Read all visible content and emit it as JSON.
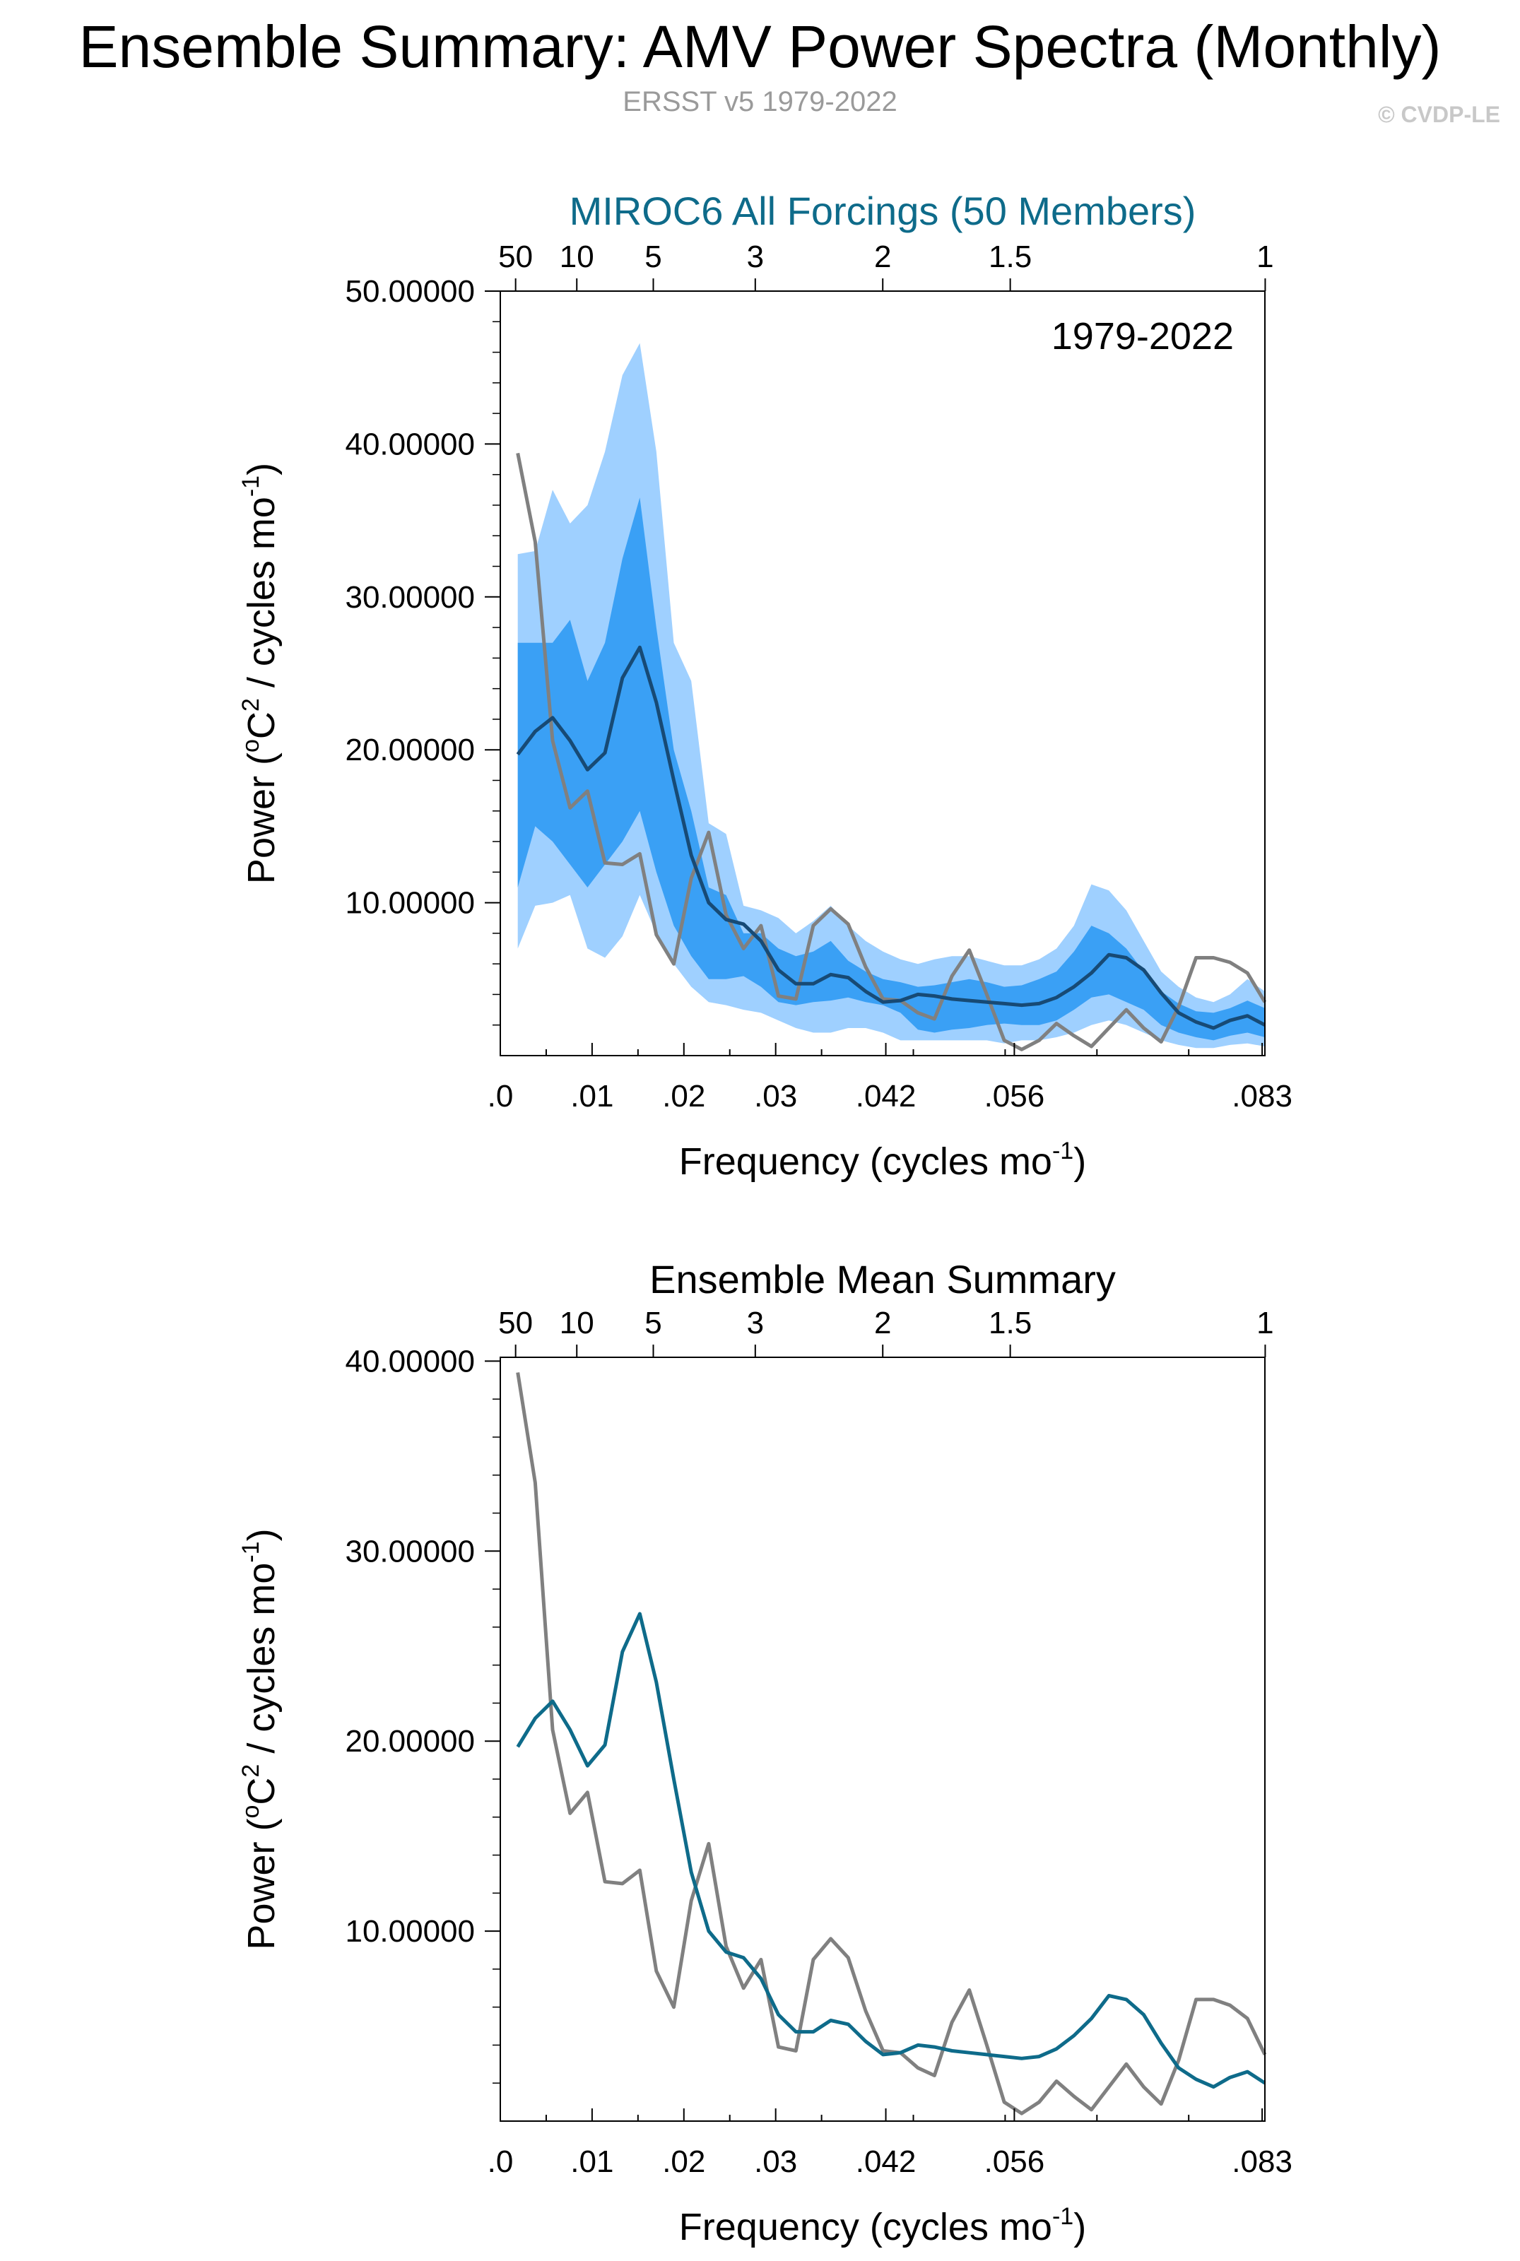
{
  "header": {
    "title": "Ensemble Summary: AMV Power Spectra (Monthly)",
    "subtitle": "ERSST v5 1979-2022",
    "credit": "© CVDP-LE"
  },
  "colors": {
    "band_outer": "#9fd0ff",
    "band_inner": "#3aa0f5",
    "ensemble_mean_top": "#174a75",
    "ensemble_mean_bottom": "#0e6b8a",
    "observations": "#808080",
    "panel1_title": "#0e6b8a"
  },
  "chart_data": [
    {
      "type": "area",
      "title": "MIROC6 All Forcings (50 Members)",
      "annotation": "1979-2022",
      "xlabel_main": "Frequency (cycles mo",
      "xlabel_sup": "-1",
      "xlabel_end": ")",
      "ylabel_main": "Power (",
      "ylabel_sup1": "o",
      "ylabel_mid": "C",
      "ylabel_sup2": "2",
      "ylabel_mid2": " / cycles mo",
      "ylabel_sup3": "-1",
      "ylabel_end": ")",
      "xlim": [
        0,
        0.0833
      ],
      "ylim": [
        0,
        50
      ],
      "xticks": [
        {
          "value": 0,
          "label": ".0"
        },
        {
          "value": 0.01,
          "label": ".01"
        },
        {
          "value": 0.02,
          "label": ".02"
        },
        {
          "value": 0.03,
          "label": ".03"
        },
        {
          "value": 0.042,
          "label": ".042"
        },
        {
          "value": 0.056,
          "label": ".056"
        },
        {
          "value": 0.083,
          "label": ".083"
        }
      ],
      "yticks": [
        {
          "value": 10,
          "label": "10.00000"
        },
        {
          "value": 20,
          "label": "20.00000"
        },
        {
          "value": 30,
          "label": "30.00000"
        },
        {
          "value": 40,
          "label": "40.00000"
        },
        {
          "value": 50,
          "label": "50.00000"
        }
      ],
      "top_axis_period_ticks": [
        {
          "value": 0.001667,
          "label": "50"
        },
        {
          "value": 0.008333,
          "label": "10"
        },
        {
          "value": 0.016667,
          "label": "5"
        },
        {
          "value": 0.027778,
          "label": "3"
        },
        {
          "value": 0.041667,
          "label": "2"
        },
        {
          "value": 0.055556,
          "label": "1.5"
        },
        {
          "value": 0.083333,
          "label": "1"
        }
      ],
      "x": [
        0.0019,
        0.0038,
        0.0057,
        0.0076,
        0.0095,
        0.0114,
        0.0133,
        0.0152,
        0.017,
        0.0189,
        0.0208,
        0.0227,
        0.0246,
        0.0265,
        0.0284,
        0.0303,
        0.0322,
        0.0341,
        0.036,
        0.0379,
        0.0398,
        0.0417,
        0.0436,
        0.0455,
        0.0473,
        0.0492,
        0.0511,
        0.053,
        0.0549,
        0.0568,
        0.0587,
        0.0606,
        0.0625,
        0.0644,
        0.0663,
        0.0682,
        0.0701,
        0.072,
        0.0739,
        0.0758,
        0.0777,
        0.0795,
        0.0814,
        0.0833
      ],
      "series": [
        {
          "name": "",
          "role": "outer_band_upper",
          "values": [
            32.8,
            33.0,
            37.0,
            34.8,
            36.0,
            39.5,
            44.5,
            46.6,
            39.5,
            27.0,
            24.5,
            15.2,
            14.5,
            9.8,
            9.5,
            9.0,
            8.0,
            8.8,
            9.8,
            8.5,
            7.5,
            6.8,
            6.3,
            6.0,
            6.3,
            6.5,
            6.5,
            6.2,
            5.9,
            5.9,
            6.3,
            7.0,
            8.5,
            11.2,
            10.8,
            9.5,
            7.5,
            5.5,
            4.5,
            3.8,
            3.5,
            4.0,
            5.0,
            4.2
          ]
        },
        {
          "name": "",
          "role": "inner_band_upper",
          "values": [
            27.0,
            27.0,
            27.0,
            28.5,
            24.5,
            27.0,
            32.5,
            36.5,
            28.0,
            20.0,
            16.0,
            11.0,
            10.5,
            8.0,
            8.0,
            7.0,
            6.5,
            6.8,
            7.5,
            6.2,
            5.5,
            5.0,
            4.8,
            4.5,
            4.6,
            4.8,
            5.0,
            4.8,
            4.5,
            4.6,
            5.0,
            5.5,
            6.8,
            8.5,
            8.0,
            7.0,
            5.5,
            4.2,
            3.4,
            2.9,
            2.8,
            3.1,
            3.6,
            3.1
          ]
        },
        {
          "name": "",
          "role": "ensemble_mean",
          "values": [
            19.7,
            21.2,
            22.1,
            20.6,
            18.7,
            19.8,
            24.7,
            26.7,
            23.1,
            18.0,
            13.1,
            10.0,
            8.9,
            8.6,
            7.5,
            5.6,
            4.7,
            4.7,
            5.3,
            5.1,
            4.2,
            3.5,
            3.6,
            4.0,
            3.9,
            3.7,
            3.6,
            3.5,
            3.4,
            3.3,
            3.4,
            3.8,
            4.5,
            5.4,
            6.6,
            6.4,
            5.6,
            4.1,
            2.8,
            2.2,
            1.8,
            2.3,
            2.6,
            2.0
          ]
        },
        {
          "name": "",
          "role": "inner_band_lower",
          "values": [
            11.0,
            15.0,
            14.0,
            12.5,
            11.0,
            12.5,
            14.0,
            16.0,
            12.0,
            8.5,
            6.5,
            5.0,
            5.0,
            5.2,
            4.5,
            3.5,
            3.3,
            3.5,
            3.6,
            3.8,
            3.5,
            3.3,
            2.8,
            1.7,
            1.5,
            1.7,
            1.8,
            2.0,
            2.1,
            2.0,
            2.0,
            2.3,
            3.0,
            3.8,
            4.0,
            3.5,
            3.0,
            2.0,
            1.5,
            1.2,
            1.0,
            1.3,
            1.5,
            1.2
          ]
        },
        {
          "name": "",
          "role": "outer_band_lower",
          "values": [
            7.0,
            9.8,
            10.0,
            10.5,
            7.0,
            6.4,
            7.8,
            10.5,
            8.0,
            6.0,
            4.5,
            3.5,
            3.3,
            3.0,
            2.8,
            2.3,
            1.8,
            1.5,
            1.5,
            1.8,
            1.8,
            1.5,
            1.0,
            1.0,
            1.0,
            1.0,
            1.0,
            1.0,
            0.8,
            1.0,
            1.0,
            1.2,
            1.5,
            2.0,
            2.3,
            2.0,
            1.5,
            1.0,
            0.7,
            0.5,
            0.5,
            0.7,
            0.8,
            0.6
          ]
        },
        {
          "name": "",
          "role": "observations",
          "values": [
            39.4,
            33.6,
            20.6,
            16.2,
            17.3,
            12.6,
            12.5,
            13.2,
            7.9,
            6.0,
            11.6,
            14.6,
            9.2,
            7.0,
            8.5,
            3.9,
            3.7,
            8.5,
            9.6,
            8.6,
            5.8,
            3.7,
            3.6,
            2.8,
            2.4,
            5.2,
            6.9,
            4.0,
            1.0,
            0.4,
            1.0,
            2.1,
            1.3,
            0.6,
            1.8,
            3.0,
            1.8,
            0.9,
            3.2,
            6.4,
            6.4,
            6.1,
            5.4,
            3.5
          ]
        }
      ]
    },
    {
      "type": "line",
      "title": "Ensemble Mean Summary",
      "xlabel_main": "Frequency (cycles mo",
      "xlabel_sup": "-1",
      "xlabel_end": ")",
      "ylabel_main": "Power (",
      "ylabel_sup1": "o",
      "ylabel_mid": "C",
      "ylabel_sup2": "2",
      "ylabel_mid2": " / cycles mo",
      "ylabel_sup3": "-1",
      "ylabel_end": ")",
      "xlim": [
        0,
        0.0833
      ],
      "ylim": [
        0,
        40.2
      ],
      "xticks": [
        {
          "value": 0,
          "label": ".0"
        },
        {
          "value": 0.01,
          "label": ".01"
        },
        {
          "value": 0.02,
          "label": ".02"
        },
        {
          "value": 0.03,
          "label": ".03"
        },
        {
          "value": 0.042,
          "label": ".042"
        },
        {
          "value": 0.056,
          "label": ".056"
        },
        {
          "value": 0.083,
          "label": ".083"
        }
      ],
      "yticks": [
        {
          "value": 10,
          "label": "10.00000"
        },
        {
          "value": 20,
          "label": "20.00000"
        },
        {
          "value": 30,
          "label": "30.00000"
        },
        {
          "value": 40,
          "label": "40.00000"
        }
      ],
      "top_axis_period_ticks": [
        {
          "value": 0.001667,
          "label": "50"
        },
        {
          "value": 0.008333,
          "label": "10"
        },
        {
          "value": 0.016667,
          "label": "5"
        },
        {
          "value": 0.027778,
          "label": "3"
        },
        {
          "value": 0.041667,
          "label": "2"
        },
        {
          "value": 0.055556,
          "label": "1.5"
        },
        {
          "value": 0.083333,
          "label": "1"
        }
      ],
      "x": [
        0.0019,
        0.0038,
        0.0057,
        0.0076,
        0.0095,
        0.0114,
        0.0133,
        0.0152,
        0.017,
        0.0189,
        0.0208,
        0.0227,
        0.0246,
        0.0265,
        0.0284,
        0.0303,
        0.0322,
        0.0341,
        0.036,
        0.0379,
        0.0398,
        0.0417,
        0.0436,
        0.0455,
        0.0473,
        0.0492,
        0.0511,
        0.053,
        0.0549,
        0.0568,
        0.0587,
        0.0606,
        0.0625,
        0.0644,
        0.0663,
        0.0682,
        0.0701,
        0.072,
        0.0739,
        0.0758,
        0.0777,
        0.0795,
        0.0814,
        0.0833
      ],
      "series": [
        {
          "name": "",
          "role": "ensemble_mean",
          "values": [
            19.7,
            21.2,
            22.1,
            20.6,
            18.7,
            19.8,
            24.7,
            26.7,
            23.1,
            18.0,
            13.1,
            10.0,
            8.9,
            8.6,
            7.5,
            5.6,
            4.7,
            4.7,
            5.3,
            5.1,
            4.2,
            3.5,
            3.6,
            4.0,
            3.9,
            3.7,
            3.6,
            3.5,
            3.4,
            3.3,
            3.4,
            3.8,
            4.5,
            5.4,
            6.6,
            6.4,
            5.6,
            4.1,
            2.8,
            2.2,
            1.8,
            2.3,
            2.6,
            2.0
          ]
        },
        {
          "name": "",
          "role": "observations",
          "values": [
            39.4,
            33.6,
            20.6,
            16.2,
            17.3,
            12.6,
            12.5,
            13.2,
            7.9,
            6.0,
            11.6,
            14.6,
            9.2,
            7.0,
            8.5,
            3.9,
            3.7,
            8.5,
            9.6,
            8.6,
            5.8,
            3.7,
            3.6,
            2.8,
            2.4,
            5.2,
            6.9,
            4.0,
            1.0,
            0.4,
            1.0,
            2.1,
            1.3,
            0.6,
            1.8,
            3.0,
            1.8,
            0.9,
            3.2,
            6.4,
            6.4,
            6.1,
            5.4,
            3.5
          ]
        }
      ]
    }
  ]
}
